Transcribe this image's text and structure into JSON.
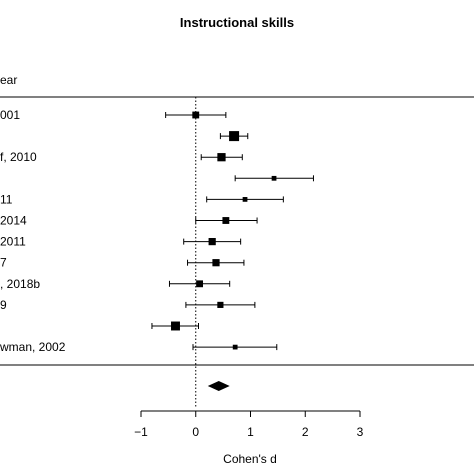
{
  "chart_data": {
    "type": "forest",
    "title": "Instructional skills",
    "column_header": "ear",
    "xlabel": "Cohen's d",
    "xlim": [
      -1,
      3
    ],
    "xticks": [
      -1,
      0,
      1,
      2,
      3
    ],
    "xtick_labels": [
      "−1",
      "0",
      "1",
      "2",
      "3"
    ],
    "reference_line": 0,
    "studies": [
      {
        "label": "001",
        "estimate": 0.0,
        "ci": [
          -0.55,
          0.55
        ],
        "weight": 0.55
      },
      {
        "label": "",
        "estimate": 0.7,
        "ci": [
          0.45,
          0.95
        ],
        "weight": 1.0
      },
      {
        "label": "f, 2010",
        "estimate": 0.47,
        "ci": [
          0.1,
          0.85
        ],
        "weight": 0.75
      },
      {
        "label": "",
        "estimate": 1.43,
        "ci": [
          0.72,
          2.15
        ],
        "weight": 0.25
      },
      {
        "label": "11",
        "estimate": 0.9,
        "ci": [
          0.2,
          1.6
        ],
        "weight": 0.25
      },
      {
        "label": "2014",
        "estimate": 0.55,
        "ci": [
          0.0,
          1.12
        ],
        "weight": 0.55
      },
      {
        "label": "2011",
        "estimate": 0.3,
        "ci": [
          -0.22,
          0.82
        ],
        "weight": 0.6
      },
      {
        "label": "7",
        "estimate": 0.37,
        "ci": [
          -0.15,
          0.88
        ],
        "weight": 0.6
      },
      {
        "label": ", 2018b",
        "estimate": 0.07,
        "ci": [
          -0.48,
          0.62
        ],
        "weight": 0.55
      },
      {
        "label": "9",
        "estimate": 0.45,
        "ci": [
          -0.18,
          1.08
        ],
        "weight": 0.45
      },
      {
        "label": "",
        "estimate": -0.37,
        "ci": [
          -0.8,
          0.05
        ],
        "weight": 0.85
      },
      {
        "label": "wman, 2002",
        "estimate": 0.72,
        "ci": [
          -0.05,
          1.48
        ],
        "weight": 0.25
      }
    ],
    "summary": {
      "estimate": 0.42,
      "ci": [
        0.22,
        0.62
      ]
    }
  }
}
